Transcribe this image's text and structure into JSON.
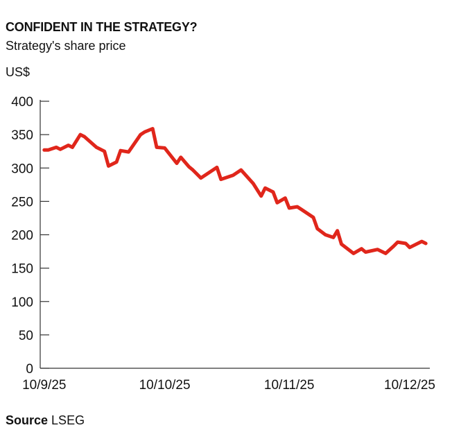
{
  "chart_data": {
    "type": "line",
    "title": "CONFIDENT IN THE STRATEGY?",
    "subtitle": "Strategy's share price",
    "ylabel": "US$",
    "xlabel": "",
    "ylim": [
      0,
      400
    ],
    "yticks": [
      0,
      50,
      100,
      150,
      200,
      250,
      300,
      350,
      400
    ],
    "xlim": [
      "2025-09-09",
      "2025-12-15"
    ],
    "xticks": [
      {
        "date": "2025-09-10",
        "label": "10/9/25"
      },
      {
        "date": "2025-10-10",
        "label": "10/10/25"
      },
      {
        "date": "2025-11-10",
        "label": "10/11/25"
      },
      {
        "date": "2025-12-10",
        "label": "10/12/25"
      }
    ],
    "grid": false,
    "line_color": "#e0261b",
    "series": [
      {
        "x": [
          "2025-09-10",
          "2025-09-11",
          "2025-09-13",
          "2025-09-14",
          "2025-09-16",
          "2025-09-17",
          "2025-09-19",
          "2025-09-20",
          "2025-09-23",
          "2025-09-25",
          "2025-09-26",
          "2025-09-28",
          "2025-09-29",
          "2025-10-01",
          "2025-10-04",
          "2025-10-05",
          "2025-10-07",
          "2025-10-08",
          "2025-10-10",
          "2025-10-13",
          "2025-10-14",
          "2025-10-16",
          "2025-10-17",
          "2025-10-19",
          "2025-10-23",
          "2025-10-24",
          "2025-10-27",
          "2025-10-29",
          "2025-11-01",
          "2025-11-03",
          "2025-11-04",
          "2025-11-06",
          "2025-11-07",
          "2025-11-09",
          "2025-11-10",
          "2025-11-12",
          "2025-11-13",
          "2025-11-16",
          "2025-11-17",
          "2025-11-19",
          "2025-11-21",
          "2025-11-22",
          "2025-11-23",
          "2025-11-26",
          "2025-11-28",
          "2025-11-29",
          "2025-12-02",
          "2025-12-04",
          "2025-12-06",
          "2025-12-07",
          "2025-12-09",
          "2025-12-10",
          "2025-12-13",
          "2025-12-14"
        ],
        "y": [
          327,
          327,
          331,
          328,
          334,
          331,
          350,
          347,
          331,
          325,
          303,
          309,
          326,
          324,
          350,
          354,
          359,
          331,
          330,
          307,
          316,
          302,
          297,
          285,
          301,
          283,
          289,
          297,
          277,
          258,
          270,
          264,
          248,
          255,
          240,
          242,
          238,
          226,
          209,
          200,
          196,
          206,
          186,
          172,
          179,
          174,
          178,
          172,
          183,
          189,
          187,
          181,
          190,
          187
        ]
      }
    ]
  },
  "source": {
    "label": "Source",
    "value": "LSEG"
  }
}
